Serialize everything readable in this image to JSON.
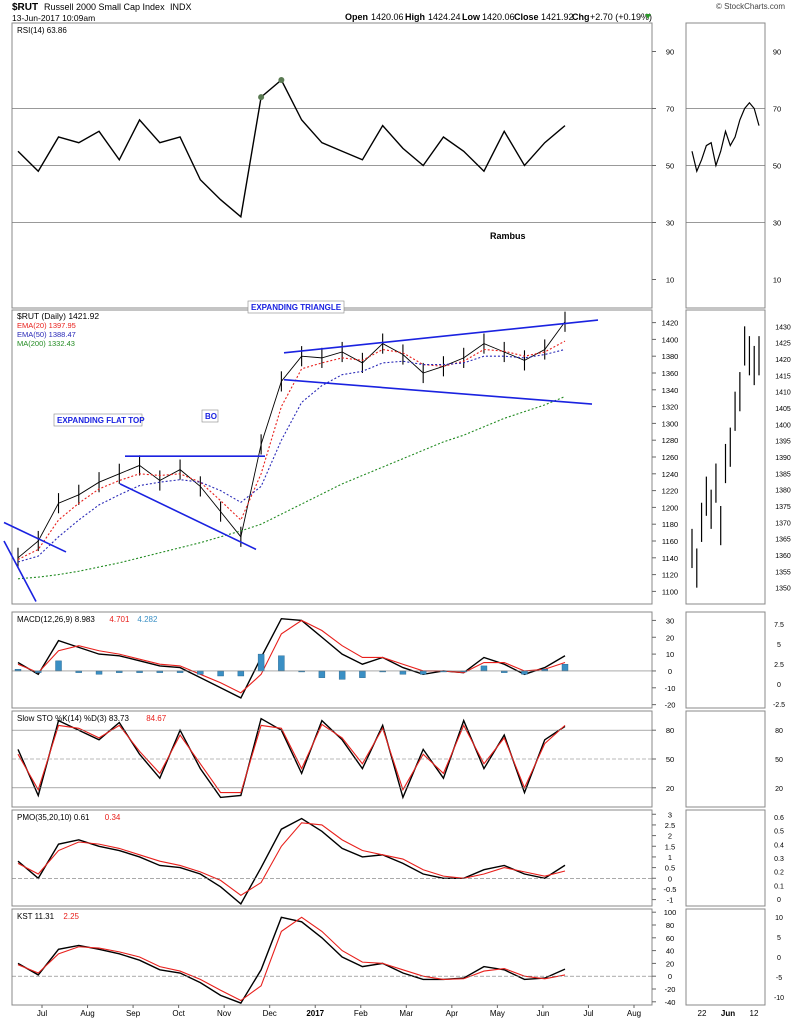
{
  "header": {
    "symbol": "$RUT",
    "name": "Russell 2000 Small Cap Index",
    "exchange": "INDX",
    "date": "13-Jun-2017 10:09am",
    "open_label": "Open",
    "open": "1420.06",
    "high_label": "High",
    "high": "1424.24",
    "low_label": "Low",
    "low": "1420.06",
    "close_label": "Close",
    "close": "1421.92",
    "chg_label": "Chg",
    "chg": "+2.70 (+0.19%)",
    "credit": "© StockCharts.com"
  },
  "x_axis": {
    "months": [
      "Jul",
      "Aug",
      "Sep",
      "Oct",
      "Nov",
      "Dec",
      "2017",
      "Feb",
      "Mar",
      "Apr",
      "May",
      "Jun",
      "Jul",
      "Aug"
    ],
    "zoom_ticks": [
      "22",
      "Jun",
      "12"
    ]
  },
  "colors": {
    "price_bar": "#000000",
    "ema20": "#e8201c",
    "ema50": "#2a2ab8",
    "ma200": "#228b22",
    "trend": "#1a22e0",
    "rsi": "#000000",
    "rsi_fill": "#5a7a52",
    "macd_hist": "#3a8fc4",
    "signal": "#e8201c"
  },
  "annotations": {
    "expanding_triangle": "EXPANDING TRIANGLE",
    "expanding_flat_top": "EXPANDING FLAT TOP",
    "bo": "BO",
    "author": "Rambus"
  },
  "chart_data": [
    {
      "type": "line",
      "panel": "rsi",
      "title": "RSI(14) 63.86",
      "legend": [
        "RSI(14) 63.86"
      ],
      "ylim": [
        0,
        100
      ],
      "yticks": [
        10,
        30,
        50,
        70,
        90
      ],
      "reference_lines": [
        30,
        50,
        70
      ],
      "series": [
        {
          "name": "RSI(14)",
          "x": [
            0,
            10,
            20,
            30,
            40,
            50,
            60,
            70,
            80,
            90,
            100,
            110,
            120,
            130,
            140,
            150,
            160,
            170,
            180,
            190,
            200,
            210,
            220,
            230,
            240,
            250,
            260,
            270
          ],
          "values": [
            55,
            48,
            60,
            58,
            62,
            52,
            66,
            58,
            60,
            45,
            38,
            32,
            74,
            80,
            66,
            58,
            55,
            52,
            64,
            56,
            50,
            60,
            55,
            48,
            62,
            50,
            58,
            64
          ]
        }
      ]
    },
    {
      "type": "line",
      "panel": "price",
      "title": "$RUT (Daily) 1421.92",
      "legend": [
        "$RUT (Daily) 1421.92",
        "EMA(20) 1397.95",
        "EMA(50) 1388.47",
        "MA(200) 1332.43"
      ],
      "ylim": [
        1085,
        1435
      ],
      "yticks": [
        1100,
        1120,
        1140,
        1160,
        1180,
        1200,
        1220,
        1240,
        1260,
        1280,
        1300,
        1320,
        1340,
        1360,
        1380,
        1400,
        1420
      ],
      "series": [
        {
          "name": "$RUT (Daily)",
          "x": [
            0,
            10,
            20,
            30,
            40,
            50,
            60,
            70,
            80,
            90,
            100,
            110,
            120,
            130,
            140,
            150,
            160,
            170,
            180,
            190,
            200,
            210,
            220,
            230,
            240,
            250,
            260,
            270
          ],
          "values": [
            1140,
            1160,
            1205,
            1215,
            1230,
            1240,
            1250,
            1232,
            1245,
            1225,
            1195,
            1165,
            1275,
            1350,
            1380,
            1378,
            1385,
            1372,
            1395,
            1382,
            1360,
            1368,
            1378,
            1395,
            1385,
            1375,
            1388,
            1421
          ]
        },
        {
          "name": "EMA(20)",
          "x": [
            0,
            10,
            20,
            30,
            40,
            50,
            60,
            70,
            80,
            90,
            100,
            110,
            120,
            130,
            140,
            150,
            160,
            170,
            180,
            190,
            200,
            210,
            220,
            230,
            240,
            250,
            260,
            270
          ],
          "values": [
            1138,
            1150,
            1185,
            1205,
            1222,
            1232,
            1240,
            1238,
            1240,
            1230,
            1208,
            1185,
            1240,
            1320,
            1365,
            1372,
            1378,
            1375,
            1388,
            1384,
            1370,
            1368,
            1374,
            1388,
            1386,
            1380,
            1385,
            1398
          ]
        },
        {
          "name": "EMA(50)",
          "x": [
            0,
            10,
            20,
            30,
            40,
            50,
            60,
            70,
            80,
            90,
            100,
            110,
            120,
            130,
            140,
            150,
            160,
            170,
            180,
            190,
            200,
            210,
            220,
            230,
            240,
            250,
            260,
            270
          ],
          "values": [
            1135,
            1142,
            1165,
            1185,
            1203,
            1215,
            1226,
            1230,
            1233,
            1230,
            1220,
            1206,
            1225,
            1280,
            1325,
            1345,
            1358,
            1362,
            1372,
            1374,
            1370,
            1370,
            1372,
            1380,
            1380,
            1378,
            1382,
            1388
          ]
        },
        {
          "name": "MA(200)",
          "x": [
            0,
            10,
            20,
            30,
            40,
            50,
            60,
            70,
            80,
            90,
            100,
            110,
            120,
            130,
            140,
            150,
            160,
            170,
            180,
            190,
            200,
            210,
            220,
            230,
            240,
            250,
            260,
            270
          ],
          "values": [
            1115,
            1117,
            1120,
            1124,
            1129,
            1134,
            1140,
            1146,
            1152,
            1158,
            1165,
            1172,
            1180,
            1192,
            1204,
            1216,
            1228,
            1238,
            1248,
            1258,
            1268,
            1278,
            1286,
            1296,
            1306,
            1314,
            1322,
            1332
          ]
        }
      ]
    },
    {
      "type": "line",
      "panel": "macd",
      "title": "MACD(12,26,9) 8.983, 4.701, 4.282",
      "legend": [
        "MACD(12,26,9) 8.983",
        "4.701",
        "4.282"
      ],
      "ylim": [
        -22,
        35
      ],
      "yticks": [
        -20,
        -10,
        0,
        10,
        20,
        30
      ],
      "series": [
        {
          "name": "MACD(12,26,9)",
          "x": [
            0,
            10,
            20,
            30,
            40,
            50,
            60,
            70,
            80,
            90,
            100,
            110,
            120,
            130,
            140,
            150,
            160,
            170,
            180,
            190,
            200,
            210,
            220,
            230,
            240,
            250,
            260,
            270
          ],
          "values": [
            5,
            -2,
            18,
            14,
            10,
            9,
            6,
            3,
            2,
            -4,
            -10,
            -16,
            8,
            31,
            30,
            20,
            10,
            4,
            8,
            2,
            -2,
            0,
            -1,
            8,
            4,
            -2,
            2,
            9
          ]
        },
        {
          "name": "Signal",
          "x": [
            0,
            10,
            20,
            30,
            40,
            50,
            60,
            70,
            80,
            90,
            100,
            110,
            120,
            130,
            140,
            150,
            160,
            170,
            180,
            190,
            200,
            210,
            220,
            230,
            240,
            250,
            260,
            270
          ],
          "values": [
            4,
            -1,
            12,
            15,
            12,
            10,
            7,
            4,
            3,
            -2,
            -7,
            -13,
            -2,
            22,
            30,
            24,
            15,
            8,
            8,
            4,
            0,
            0,
            -1,
            5,
            5,
            0,
            1,
            5
          ]
        }
      ]
    },
    {
      "type": "line",
      "panel": "sto",
      "title": "Slow STO %K(14) %D(3) 83.73, 84.67",
      "legend": [
        "Slow STO %K(14) %D(3) 83.73",
        "84.67"
      ],
      "ylim": [
        0,
        100
      ],
      "yticks": [
        20,
        50,
        80
      ],
      "series": [
        {
          "name": "%K(14)",
          "x": [
            0,
            10,
            20,
            30,
            40,
            50,
            60,
            70,
            80,
            90,
            100,
            110,
            120,
            130,
            140,
            150,
            160,
            170,
            180,
            190,
            200,
            210,
            220,
            230,
            240,
            250,
            260,
            270
          ],
          "values": [
            60,
            12,
            90,
            80,
            70,
            88,
            55,
            30,
            80,
            40,
            10,
            12,
            92,
            80,
            35,
            90,
            70,
            40,
            85,
            10,
            60,
            30,
            90,
            40,
            75,
            15,
            70,
            84
          ]
        },
        {
          "name": "%D(3)",
          "x": [
            0,
            10,
            20,
            30,
            40,
            50,
            60,
            70,
            80,
            90,
            100,
            110,
            120,
            130,
            140,
            150,
            160,
            170,
            180,
            190,
            200,
            210,
            220,
            230,
            240,
            250,
            260,
            270
          ],
          "values": [
            55,
            18,
            85,
            82,
            72,
            85,
            58,
            35,
            75,
            45,
            15,
            15,
            85,
            82,
            40,
            86,
            72,
            45,
            82,
            18,
            55,
            35,
            85,
            45,
            72,
            20,
            66,
            85
          ]
        }
      ]
    },
    {
      "type": "line",
      "panel": "pmo",
      "title": "PMO(35,20,10) 0.61, 0.34",
      "legend": [
        "PMO(35,20,10) 0.61",
        "0.34"
      ],
      "ylim": [
        -1.3,
        3.2
      ],
      "yticks": [
        -1.0,
        -0.5,
        0.0,
        0.5,
        1.0,
        1.5,
        2.0,
        2.5,
        3.0
      ],
      "series": [
        {
          "name": "PMO(35,20,10)",
          "x": [
            0,
            10,
            20,
            30,
            40,
            50,
            60,
            70,
            80,
            90,
            100,
            110,
            120,
            130,
            140,
            150,
            160,
            170,
            180,
            190,
            200,
            210,
            220,
            230,
            240,
            250,
            260,
            270
          ],
          "values": [
            0.8,
            0.0,
            1.6,
            1.8,
            1.5,
            1.3,
            1.0,
            0.6,
            0.5,
            0.2,
            -0.4,
            -1.2,
            0.5,
            2.3,
            2.8,
            2.2,
            1.4,
            1.0,
            1.1,
            0.7,
            0.2,
            0.0,
            0.0,
            0.4,
            0.6,
            0.2,
            0.0,
            0.61
          ]
        },
        {
          "name": "Signal",
          "x": [
            0,
            10,
            20,
            30,
            40,
            50,
            60,
            70,
            80,
            90,
            100,
            110,
            120,
            130,
            140,
            150,
            160,
            170,
            180,
            190,
            200,
            210,
            220,
            230,
            240,
            250,
            260,
            270
          ],
          "values": [
            0.7,
            0.2,
            1.3,
            1.7,
            1.6,
            1.4,
            1.1,
            0.8,
            0.6,
            0.3,
            -0.1,
            -0.8,
            -0.2,
            1.5,
            2.6,
            2.5,
            1.8,
            1.3,
            1.1,
            0.9,
            0.4,
            0.1,
            0.0,
            0.2,
            0.5,
            0.3,
            0.1,
            0.34
          ]
        }
      ]
    },
    {
      "type": "line",
      "panel": "kst",
      "title": "KST 11.31, 2.25",
      "legend": [
        "KST 11.31",
        "2.25"
      ],
      "ylim": [
        -45,
        105
      ],
      "yticks": [
        -40,
        -20,
        0,
        20,
        40,
        60,
        80,
        100
      ],
      "series": [
        {
          "name": "KST",
          "x": [
            0,
            10,
            20,
            30,
            40,
            50,
            60,
            70,
            80,
            90,
            100,
            110,
            120,
            130,
            140,
            150,
            160,
            170,
            180,
            190,
            200,
            210,
            220,
            230,
            240,
            250,
            260,
            270
          ],
          "values": [
            20,
            2,
            42,
            48,
            42,
            35,
            25,
            10,
            5,
            -10,
            -30,
            -42,
            10,
            92,
            85,
            60,
            30,
            15,
            20,
            5,
            -5,
            -5,
            -3,
            15,
            10,
            -5,
            -3,
            11
          ]
        },
        {
          "name": "Signal",
          "x": [
            0,
            10,
            20,
            30,
            40,
            50,
            60,
            70,
            80,
            90,
            100,
            110,
            120,
            130,
            140,
            150,
            160,
            170,
            180,
            190,
            200,
            210,
            220,
            230,
            240,
            250,
            260,
            270
          ],
          "values": [
            18,
            5,
            35,
            46,
            44,
            38,
            30,
            15,
            8,
            -5,
            -22,
            -38,
            -15,
            70,
            92,
            70,
            40,
            22,
            20,
            10,
            0,
            -5,
            -4,
            8,
            12,
            0,
            -4,
            2
          ]
        }
      ]
    },
    {
      "type": "line",
      "panel": "zoom",
      "title": "",
      "x_ticks": [
        "22",
        "Jun",
        "12"
      ],
      "price_yticks": [
        1350,
        1355,
        1360,
        1365,
        1370,
        1375,
        1380,
        1385,
        1390,
        1395,
        1400,
        1405,
        1410,
        1415,
        1420,
        1425,
        1430
      ],
      "rsi_yticks": [
        10,
        30,
        50,
        70,
        90
      ],
      "macd_yticks": [
        -2.5,
        0.0,
        2.5,
        5.0,
        7.5
      ],
      "sto_yticks": [
        20,
        50,
        80
      ],
      "pmo_yticks": [
        0.0,
        0.1,
        0.2,
        0.3,
        0.4,
        0.5,
        0.6
      ],
      "kst_yticks": [
        -10,
        -5,
        0,
        5,
        10
      ],
      "series": [
        {
          "name": "$RUT (Daily)",
          "x": [
            0,
            1,
            2,
            3,
            4,
            5,
            6,
            7,
            8,
            9,
            10,
            11,
            12,
            13,
            14
          ],
          "values": [
            1362,
            1356,
            1370,
            1378,
            1374,
            1382,
            1369,
            1388,
            1393,
            1404,
            1410,
            1424,
            1421,
            1418,
            1421
          ]
        },
        {
          "name": "RSI(14)",
          "x": [
            0,
            1,
            2,
            3,
            4,
            5,
            6,
            7,
            8,
            9,
            10,
            11,
            12,
            13,
            14
          ],
          "values": [
            55,
            48,
            52,
            57,
            58,
            50,
            55,
            62,
            57,
            60,
            66,
            70,
            72,
            70,
            64
          ]
        }
      ]
    }
  ]
}
